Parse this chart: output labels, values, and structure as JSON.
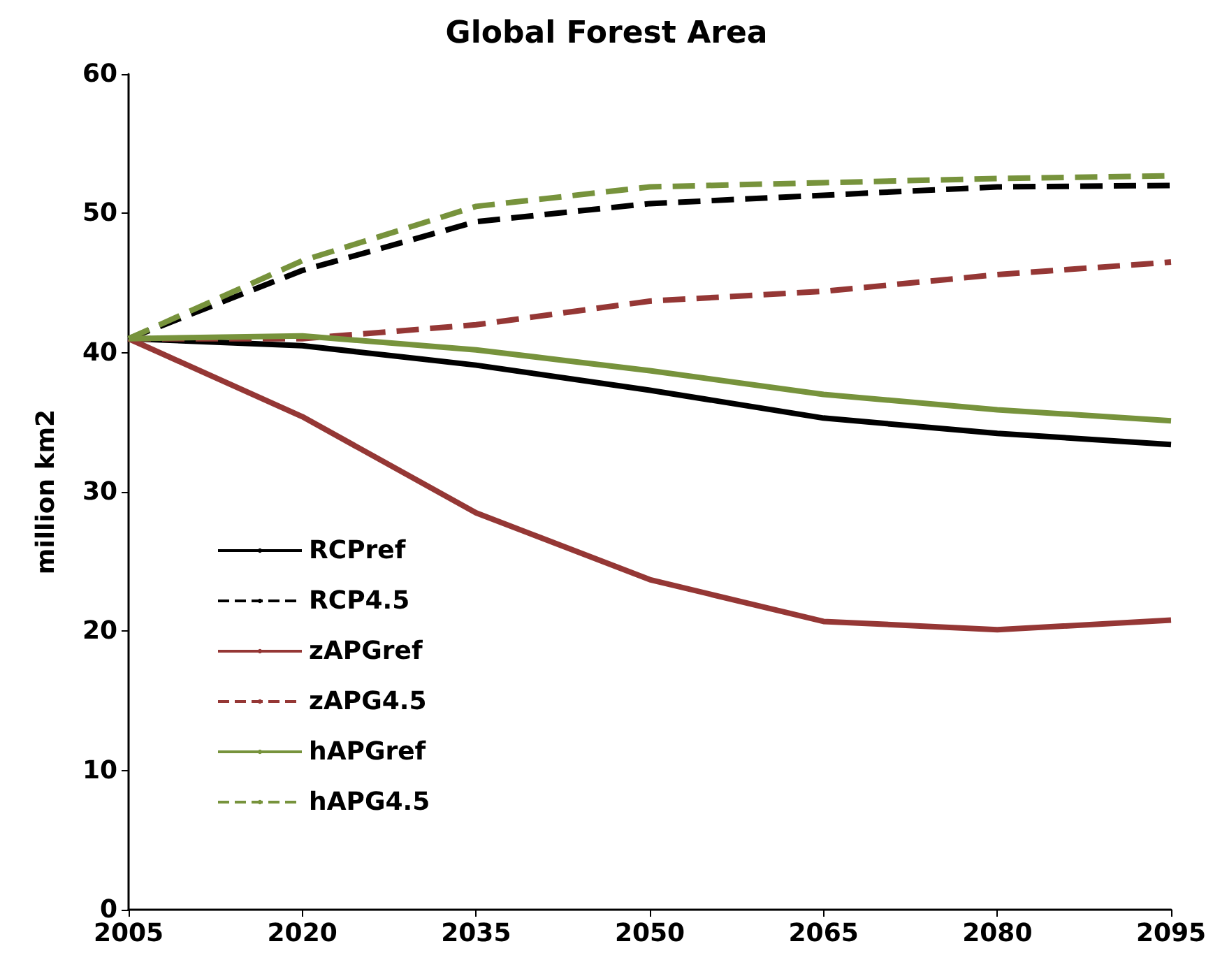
{
  "chart_data": {
    "type": "line",
    "title": "Global Forest Area",
    "ylabel": "million km2",
    "x": [
      2005,
      2020,
      2035,
      2050,
      2065,
      2080,
      2095
    ],
    "xlim": [
      2005,
      2095
    ],
    "xticks": [
      2005,
      2020,
      2035,
      2050,
      2065,
      2080,
      2095
    ],
    "ylim": [
      0,
      60
    ],
    "yticks": [
      0,
      10,
      20,
      30,
      40,
      50,
      60
    ],
    "grid": false,
    "legend": "bottom left",
    "marker": "none",
    "series": [
      {
        "name": "RCPref",
        "color": "#000000",
        "line_style": "solid",
        "values": [
          41,
          40.5,
          39.1,
          37.3,
          35.3,
          34.2,
          33.4
        ]
      },
      {
        "name": "RCP4.5",
        "color": "#000000",
        "line_style": "dashed",
        "values": [
          41,
          45.9,
          49.4,
          50.7,
          51.3,
          51.9,
          52.0
        ]
      },
      {
        "name": "zAPGref",
        "color": "#953735",
        "line_style": "solid",
        "values": [
          41,
          35.4,
          28.5,
          23.7,
          20.7,
          20.1,
          20.8
        ]
      },
      {
        "name": "zAPG4.5",
        "color": "#953735",
        "line_style": "dashed",
        "values": [
          41,
          41.0,
          42.0,
          43.7,
          44.4,
          45.6,
          46.5
        ]
      },
      {
        "name": "hAPGref",
        "color": "#77933c",
        "line_style": "solid",
        "values": [
          41,
          41.2,
          40.2,
          38.7,
          37.0,
          35.9,
          35.1
        ]
      },
      {
        "name": "hAPG4.5",
        "color": "#77933c",
        "line_style": "dashed",
        "values": [
          41,
          46.6,
          50.5,
          51.9,
          52.2,
          52.5,
          52.7
        ]
      }
    ]
  }
}
